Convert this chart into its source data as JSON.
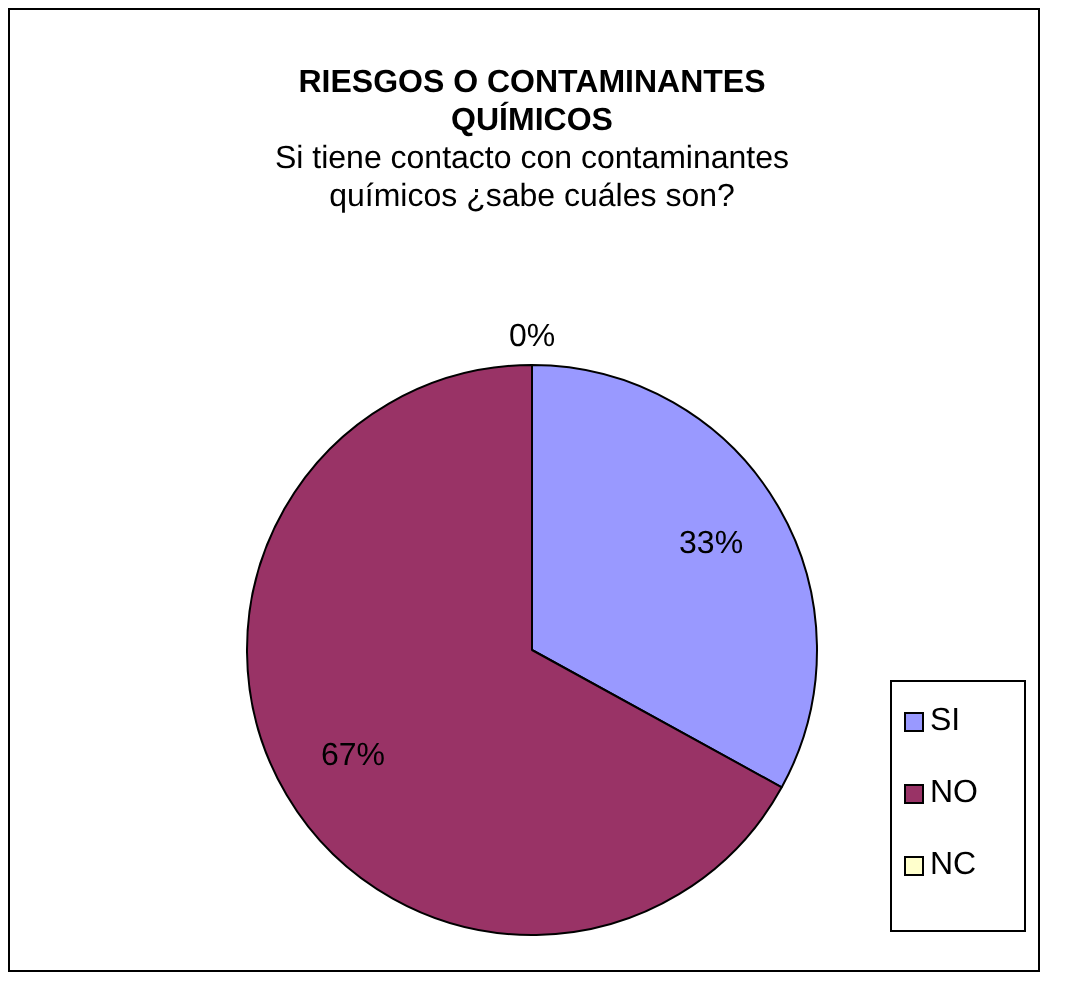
{
  "chart_data": {
    "type": "pie",
    "title": "RIESGOS O CONTAMINANTES QUÍMICOS",
    "subtitle": "Si tiene contacto con contaminantes químicos ¿sabe cuáles son?",
    "categories": [
      "SI",
      "NO",
      "NC"
    ],
    "values": [
      33,
      67,
      0
    ],
    "colors": [
      "#9999ff",
      "#993366",
      "#ffffcc"
    ],
    "value_labels": [
      "33%",
      "67%",
      "0%"
    ],
    "legend": "right"
  }
}
